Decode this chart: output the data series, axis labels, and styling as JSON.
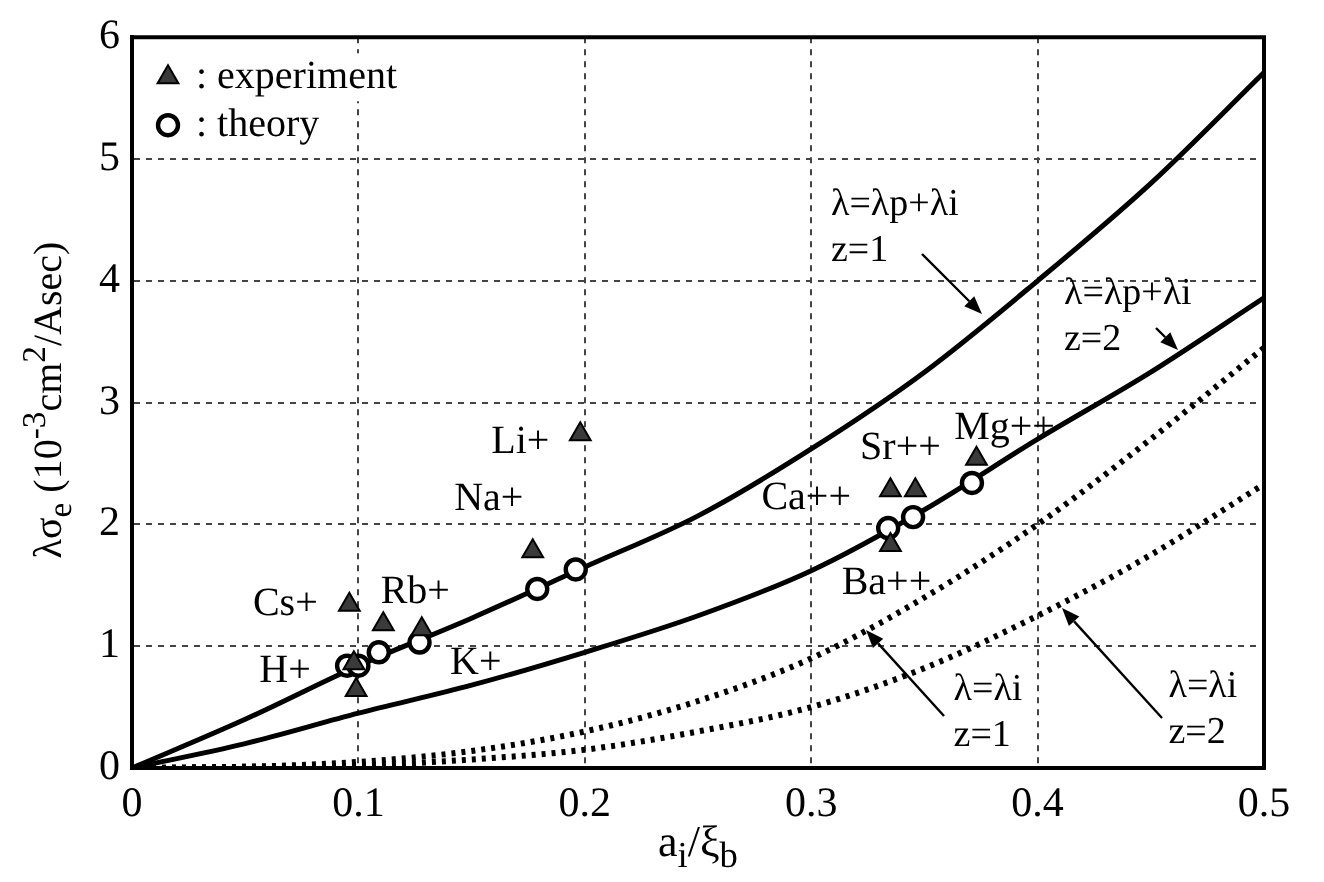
{
  "chart_data": {
    "type": "scatter",
    "xlabel": "a$_{i}$/ξ$_{b}$",
    "ylabel": "λσ$_{e}$ (10$^{-3}$cm$^{2}$/Asec)",
    "xlim": [
      0,
      0.5
    ],
    "ylim": [
      0,
      6
    ],
    "xticks": [
      0,
      0.1,
      0.2,
      0.3,
      0.4,
      0.5
    ],
    "yticks": [
      0,
      1,
      2,
      3,
      4,
      5,
      6
    ],
    "grid": true,
    "legend": "top left",
    "series": [
      {
        "name": ": experiment",
        "marker": "triangle",
        "color": "#3a3a3a",
        "x": [
          0.096,
          0.098,
          0.099,
          0.111,
          0.128,
          0.177,
          0.198,
          0.335,
          0.346,
          0.335,
          0.373
        ],
        "values": [
          1.34,
          0.86,
          0.64,
          1.18,
          1.14,
          1.78,
          2.74,
          2.28,
          2.28,
          1.83,
          2.54
        ]
      },
      {
        "name": ": theory",
        "marker": "circle",
        "color": "#000000",
        "x": [
          0.095,
          0.1,
          0.109,
          0.127,
          0.179,
          0.196,
          0.334,
          0.345,
          0.371
        ],
        "values": [
          0.84,
          0.84,
          0.95,
          1.03,
          1.47,
          1.63,
          1.97,
          2.06,
          2.34
        ]
      },
      {
        "type": "line",
        "line_style": "solid",
        "color": "#000000",
        "x": [
          0,
          0.05,
          0.1,
          0.15,
          0.2,
          0.25,
          0.3,
          0.35,
          0.4,
          0.45,
          0.5
        ],
        "values": [
          0,
          0.4,
          0.84,
          1.23,
          1.65,
          2.07,
          2.62,
          3.25,
          4.0,
          4.8,
          5.71
        ]
      },
      {
        "type": "line",
        "line_style": "solid",
        "color": "#000000",
        "x": [
          0,
          0.05,
          0.1,
          0.15,
          0.2,
          0.25,
          0.3,
          0.35,
          0.4,
          0.45,
          0.5
        ],
        "values": [
          0,
          0.2,
          0.45,
          0.68,
          0.95,
          1.25,
          1.62,
          2.12,
          2.7,
          3.25,
          3.86
        ]
      },
      {
        "type": "line",
        "line_style": "dotted",
        "color": "#000000",
        "x": [
          0,
          0.05,
          0.1,
          0.15,
          0.2,
          0.25,
          0.3,
          0.35,
          0.4,
          0.45,
          0.5
        ],
        "values": [
          0,
          0.01,
          0.05,
          0.14,
          0.3,
          0.55,
          0.9,
          1.4,
          2.0,
          2.7,
          3.45
        ]
      },
      {
        "type": "line",
        "line_style": "dotted",
        "color": "#000000",
        "x": [
          0,
          0.05,
          0.1,
          0.15,
          0.2,
          0.25,
          0.3,
          0.35,
          0.4,
          0.45,
          0.5
        ],
        "values": [
          0,
          0.01,
          0.02,
          0.07,
          0.15,
          0.3,
          0.5,
          0.82,
          1.25,
          1.75,
          2.33
        ]
      }
    ],
    "annotations": [
      {
        "text": "λ=λp+λi\nz=1",
        "x": 0.375,
        "y": 3.72
      },
      {
        "text": "λ=λp+λi\nz=2",
        "x": 0.462,
        "y": 3.43
      },
      {
        "text": "λ=λi\nz=1",
        "x": 0.324,
        "y": 1.13
      },
      {
        "text": "λ=λi\nz=2",
        "x": 0.411,
        "y": 1.32
      },
      {
        "text": "Cs+",
        "x": 0.096,
        "y": 1.34
      },
      {
        "text": "Rb+",
        "x": 0.111,
        "y": 1.18
      },
      {
        "text": "H+",
        "x": 0.095,
        "y": 0.84
      },
      {
        "text": "K+",
        "x": 0.128,
        "y": 1.14
      },
      {
        "text": "Na+",
        "x": 0.177,
        "y": 1.78
      },
      {
        "text": "Li+",
        "x": 0.198,
        "y": 2.74
      },
      {
        "text": "Sr++",
        "x": 0.335,
        "y": 2.28
      },
      {
        "text": "Mg++",
        "x": 0.373,
        "y": 2.54
      },
      {
        "text": "Ca++",
        "x": 0.334,
        "y": 1.97
      },
      {
        "text": "Ba++",
        "x": 0.335,
        "y": 1.83
      }
    ]
  }
}
